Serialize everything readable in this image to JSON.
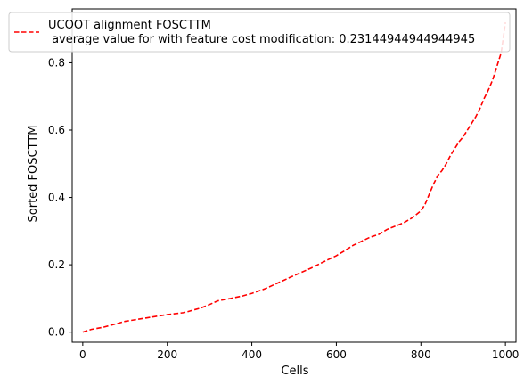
{
  "chart_data": {
    "type": "line",
    "title": "",
    "xlabel": "Cells",
    "ylabel": "Sorted FOSCTTM",
    "xlim": [
      -25,
      1025
    ],
    "ylim": [
      -0.03,
      0.96
    ],
    "xticks": [
      0,
      200,
      400,
      600,
      800,
      1000
    ],
    "yticks": [
      0.0,
      0.2,
      0.4,
      0.6,
      0.8
    ],
    "ytick_labels": [
      "0.0",
      "0.2",
      "0.4",
      "0.6",
      "0.8"
    ],
    "grid": false,
    "legend_position": "top",
    "series": [
      {
        "name": "UCOOT alignment FOSCTTM\n average value for with feature cost modification: 0.23144944944944945",
        "color": "#ff0000",
        "line_style": "dashed",
        "x": [
          0,
          20,
          50,
          80,
          100,
          150,
          180,
          200,
          240,
          280,
          300,
          320,
          350,
          380,
          400,
          430,
          460,
          500,
          540,
          580,
          600,
          620,
          640,
          660,
          680,
          700,
          720,
          740,
          760,
          780,
          800,
          810,
          820,
          830,
          840,
          850,
          860,
          870,
          880,
          890,
          900,
          910,
          920,
          930,
          940,
          950,
          960,
          970,
          980,
          990,
          1000
        ],
        "y": [
          0.0,
          0.008,
          0.015,
          0.025,
          0.032,
          0.042,
          0.048,
          0.052,
          0.058,
          0.072,
          0.082,
          0.093,
          0.1,
          0.108,
          0.115,
          0.128,
          0.145,
          0.168,
          0.19,
          0.215,
          0.227,
          0.242,
          0.258,
          0.27,
          0.282,
          0.29,
          0.305,
          0.315,
          0.325,
          0.34,
          0.36,
          0.38,
          0.41,
          0.44,
          0.465,
          0.48,
          0.5,
          0.525,
          0.545,
          0.565,
          0.58,
          0.6,
          0.62,
          0.64,
          0.665,
          0.695,
          0.72,
          0.75,
          0.79,
          0.83,
          0.92
        ]
      }
    ]
  }
}
